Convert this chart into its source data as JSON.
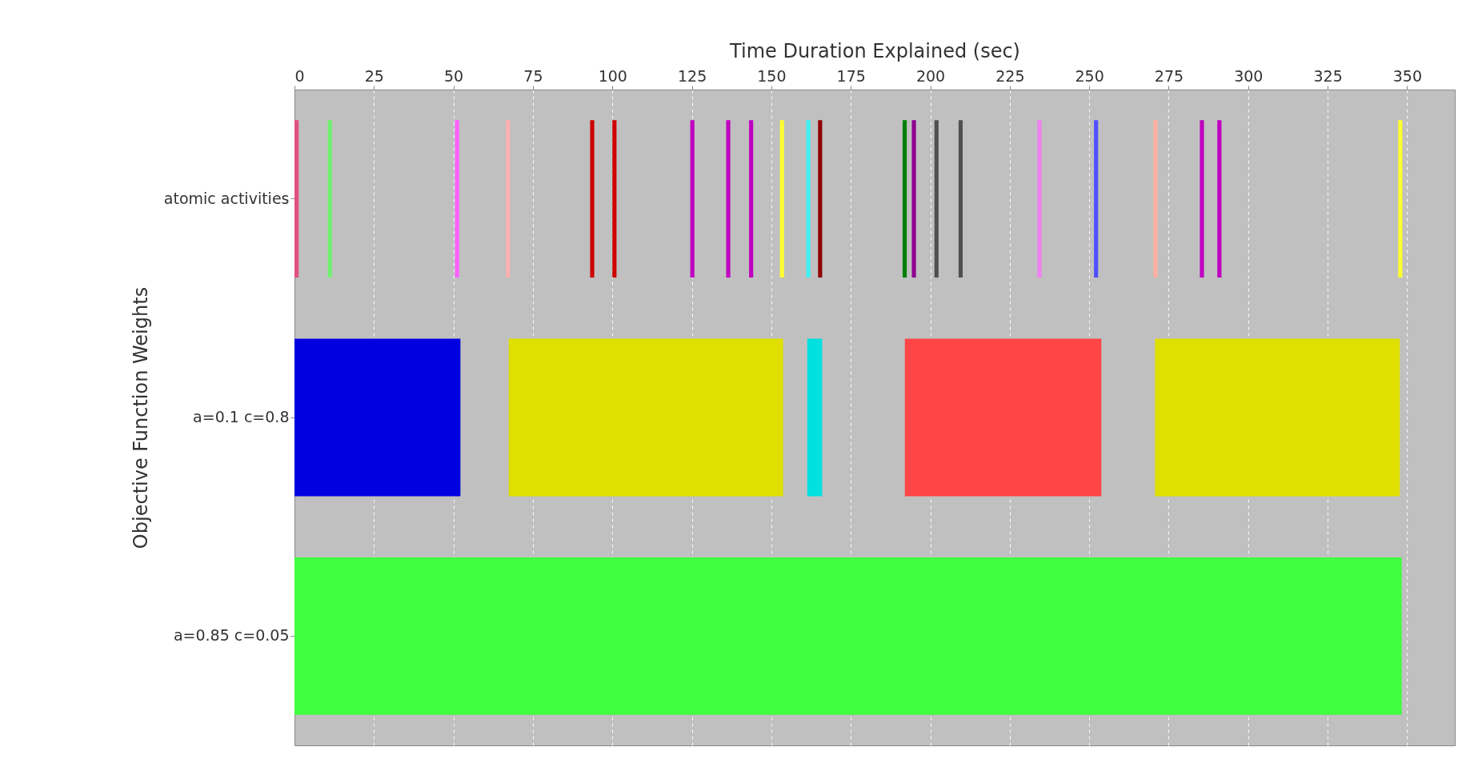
{
  "chart_data": {
    "type": "bar",
    "orientation": "horizontal",
    "xlabel": "Time Duration Explained (sec)",
    "ylabel": "Objective Function Weights",
    "categories": [
      "atomic activities",
      "a=0.1 c=0.8",
      "a=0.85 c=0.05"
    ],
    "xlim": [
      0,
      365
    ],
    "xticks": [
      0,
      25,
      50,
      75,
      100,
      125,
      150,
      175,
      200,
      225,
      250,
      275,
      300,
      325,
      350
    ],
    "grid": "x",
    "series": [
      {
        "color": "#e05080",
        "values": [
          1.3,
          null,
          null
        ],
        "base": [
          0,
          null,
          null
        ]
      },
      {
        "color": "#70f070",
        "values": [
          1.3,
          null,
          null
        ],
        "base": [
          10.5,
          null,
          null
        ]
      },
      {
        "color": "#ff60ff",
        "values": [
          1.3,
          null,
          null
        ],
        "base": [
          50.5,
          null,
          null
        ]
      },
      {
        "color": "#ffb0b0",
        "values": [
          1.3,
          null,
          null
        ],
        "base": [
          66.5,
          null,
          null
        ]
      },
      {
        "color": "#cc0000",
        "values": [
          1.3,
          null,
          null
        ],
        "base": [
          93,
          null,
          null
        ]
      },
      {
        "color": "#cc0000",
        "values": [
          1.3,
          null,
          null
        ],
        "base": [
          100,
          null,
          null
        ]
      },
      {
        "color": "#c000c0",
        "values": [
          1.3,
          null,
          null
        ],
        "base": [
          124.5,
          null,
          null
        ]
      },
      {
        "color": "#c000c0",
        "values": [
          1.3,
          null,
          null
        ],
        "base": [
          135.8,
          null,
          null
        ]
      },
      {
        "color": "#c000c0",
        "values": [
          1.3,
          null,
          null
        ],
        "base": [
          143,
          null,
          null
        ]
      },
      {
        "color": "#ffff30",
        "values": [
          1.3,
          null,
          null
        ],
        "base": [
          152.7,
          null,
          null
        ]
      },
      {
        "color": "#40f0f0",
        "values": [
          1.3,
          null,
          null
        ],
        "base": [
          161,
          null,
          null
        ]
      },
      {
        "color": "#900000",
        "values": [
          1.3,
          null,
          null
        ],
        "base": [
          164.7,
          null,
          null
        ]
      },
      {
        "color": "#008000",
        "values": [
          1.3,
          null,
          null
        ],
        "base": [
          191.3,
          null,
          null
        ]
      },
      {
        "color": "#900090",
        "values": [
          1.3,
          null,
          null
        ],
        "base": [
          194.2,
          null,
          null
        ]
      },
      {
        "color": "#505050",
        "values": [
          1.3,
          null,
          null
        ],
        "base": [
          201.3,
          null,
          null
        ]
      },
      {
        "color": "#505050",
        "values": [
          1.3,
          null,
          null
        ],
        "base": [
          208.9,
          null,
          null
        ]
      },
      {
        "color": "#f080f0",
        "values": [
          1.3,
          null,
          null
        ],
        "base": [
          233.7,
          null,
          null
        ]
      },
      {
        "color": "#5050ff",
        "values": [
          1.3,
          null,
          null
        ],
        "base": [
          251.5,
          null,
          null
        ]
      },
      {
        "color": "#ffb0a0",
        "values": [
          1.3,
          null,
          null
        ],
        "base": [
          270.2,
          null,
          null
        ]
      },
      {
        "color": "#c000c0",
        "values": [
          1.3,
          null,
          null
        ],
        "base": [
          284.8,
          null,
          null
        ]
      },
      {
        "color": "#c000c0",
        "values": [
          1.3,
          null,
          null
        ],
        "base": [
          290.3,
          null,
          null
        ]
      },
      {
        "color": "#ffff30",
        "values": [
          1.3,
          null,
          null
        ],
        "base": [
          347.2,
          null,
          null
        ]
      },
      {
        "color": "#0000e0",
        "values": [
          null,
          52.2,
          null
        ],
        "base": [
          null,
          0,
          null
        ]
      },
      {
        "color": "#e0e000",
        "values": [
          null,
          86.3,
          null
        ],
        "base": [
          null,
          67.4,
          null
        ]
      },
      {
        "color": "#00e0e0",
        "values": [
          null,
          4.7,
          null
        ],
        "base": [
          null,
          161.3,
          null
        ]
      },
      {
        "color": "#ff4545",
        "values": [
          null,
          61.8,
          null
        ],
        "base": [
          null,
          192,
          null
        ]
      },
      {
        "color": "#e0e000",
        "values": [
          null,
          77,
          null
        ],
        "base": [
          null,
          270.7,
          null
        ]
      },
      {
        "color": "#40ff40",
        "values": [
          null,
          null,
          348.3
        ],
        "base": [
          null,
          null,
          0
        ]
      }
    ]
  }
}
